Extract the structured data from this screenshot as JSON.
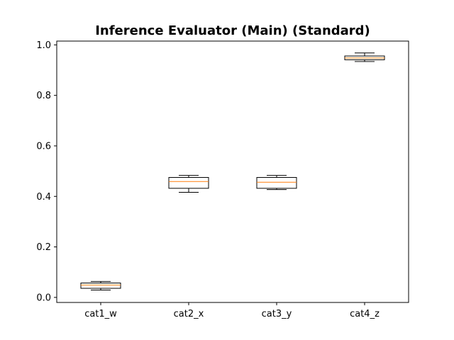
{
  "chart_data": {
    "type": "box",
    "title": "Inference Evaluator (Main) (Standard)",
    "xlabel": "",
    "ylabel": "",
    "categories": [
      "cat1_w",
      "cat2_x",
      "cat3_y",
      "cat4_z"
    ],
    "boxes": [
      {
        "category": "cat1_w",
        "whisker_low": 0.029,
        "q1": 0.036,
        "median": 0.049,
        "q3": 0.057,
        "whisker_high": 0.063
      },
      {
        "category": "cat2_x",
        "whisker_low": 0.416,
        "q1": 0.432,
        "median": 0.459,
        "q3": 0.475,
        "whisker_high": 0.483
      },
      {
        "category": "cat3_y",
        "whisker_low": 0.427,
        "q1": 0.432,
        "median": 0.456,
        "q3": 0.475,
        "whisker_high": 0.483
      },
      {
        "category": "cat4_z",
        "whisker_low": 0.934,
        "q1": 0.941,
        "median": 0.948,
        "q3": 0.956,
        "whisker_high": 0.968
      }
    ],
    "ylim": [
      -0.02,
      1.015
    ],
    "yticks": [
      "0.0",
      "0.2",
      "0.4",
      "0.6",
      "0.8",
      "1.0"
    ],
    "grid": false,
    "legend": "none",
    "colors": {
      "box": "#000000",
      "median": "#ff7f0e",
      "whisker": "#000000",
      "axis": "#000000"
    }
  }
}
